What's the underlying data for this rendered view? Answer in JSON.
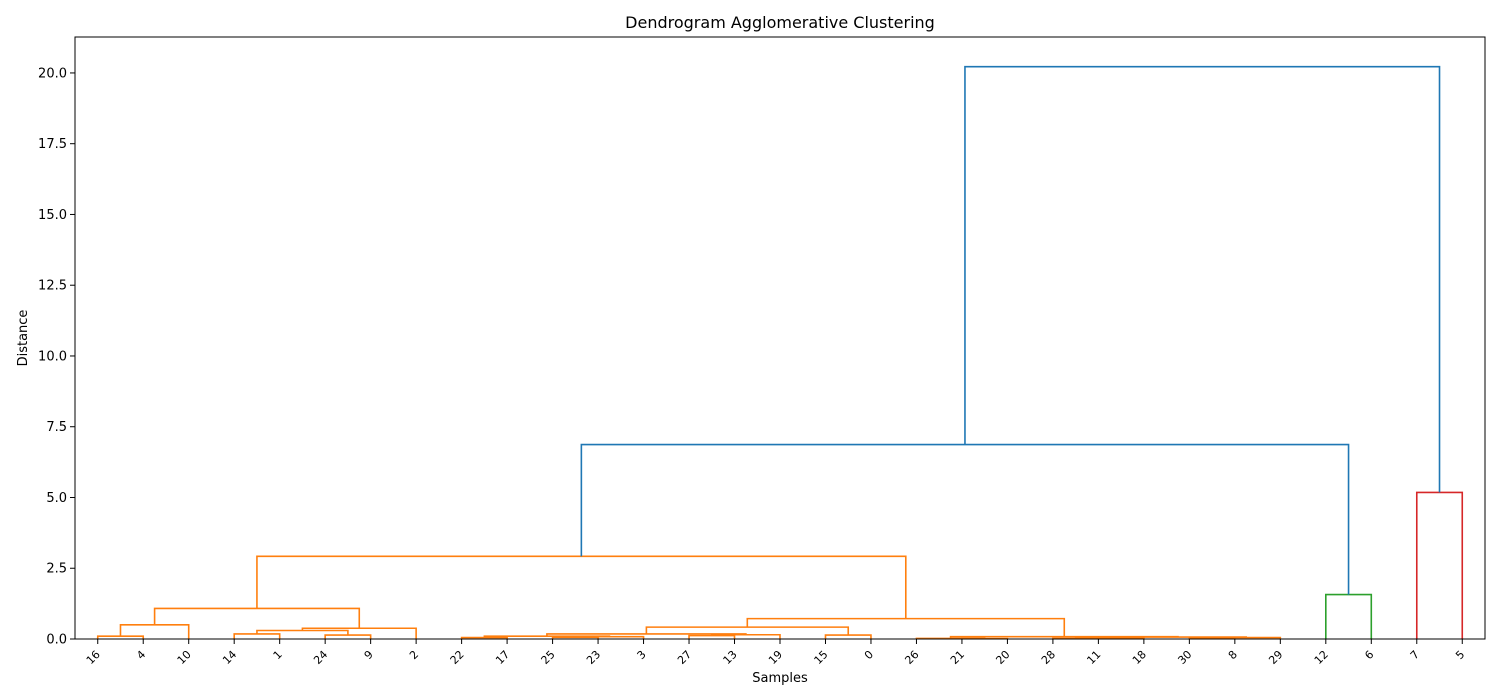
{
  "chart_data": {
    "type": "dendrogram",
    "title": "Dendrogram Agglomerative Clustering",
    "xlabel": "Samples",
    "ylabel": "Distance",
    "ylim": [
      0,
      21.27
    ],
    "y_ticks": [
      "0.0",
      "2.5",
      "5.0",
      "7.5",
      "10.0",
      "12.5",
      "15.0",
      "17.5",
      "20.0"
    ],
    "leaves": [
      "16",
      "4",
      "10",
      "14",
      "1",
      "24",
      "9",
      "2",
      "22",
      "17",
      "25",
      "23",
      "3",
      "27",
      "13",
      "19",
      "15",
      "0",
      "26",
      "21",
      "20",
      "28",
      "11",
      "18",
      "30",
      "8",
      "29",
      "12",
      "6",
      "7",
      "5"
    ],
    "colors": {
      "orange": "#ff7f0e",
      "green": "#2ca02c",
      "red": "#d62728",
      "blue": "#1f77b4"
    },
    "links": [
      {
        "a": 0,
        "b": 1,
        "h": 0.1,
        "c": "orange"
      },
      {
        "a": 3,
        "b": 4,
        "h": 0.18,
        "c": "orange"
      },
      {
        "a": 5,
        "b": 6,
        "h": 0.14,
        "c": "orange"
      },
      {
        "a": 8,
        "b": 9,
        "h": 0.05,
        "c": "orange"
      },
      {
        "a": 10,
        "b": 11,
        "h": 0.06,
        "c": "orange"
      },
      {
        "a": 16,
        "b": 17,
        "h": 0.14,
        "c": "orange"
      },
      {
        "a": 19,
        "b": 20,
        "h": 0.01,
        "c": "orange"
      },
      {
        "a": 21,
        "b": 22,
        "h": 0.02,
        "c": "orange"
      },
      {
        "a": 24,
        "b": 25,
        "h": 0.03,
        "c": "orange"
      },
      {
        "a": 27,
        "b": 28,
        "h": 1.57,
        "c": "green"
      },
      {
        "a": 29,
        "b": 30,
        "h": 5.18,
        "c": "red"
      }
    ]
  }
}
